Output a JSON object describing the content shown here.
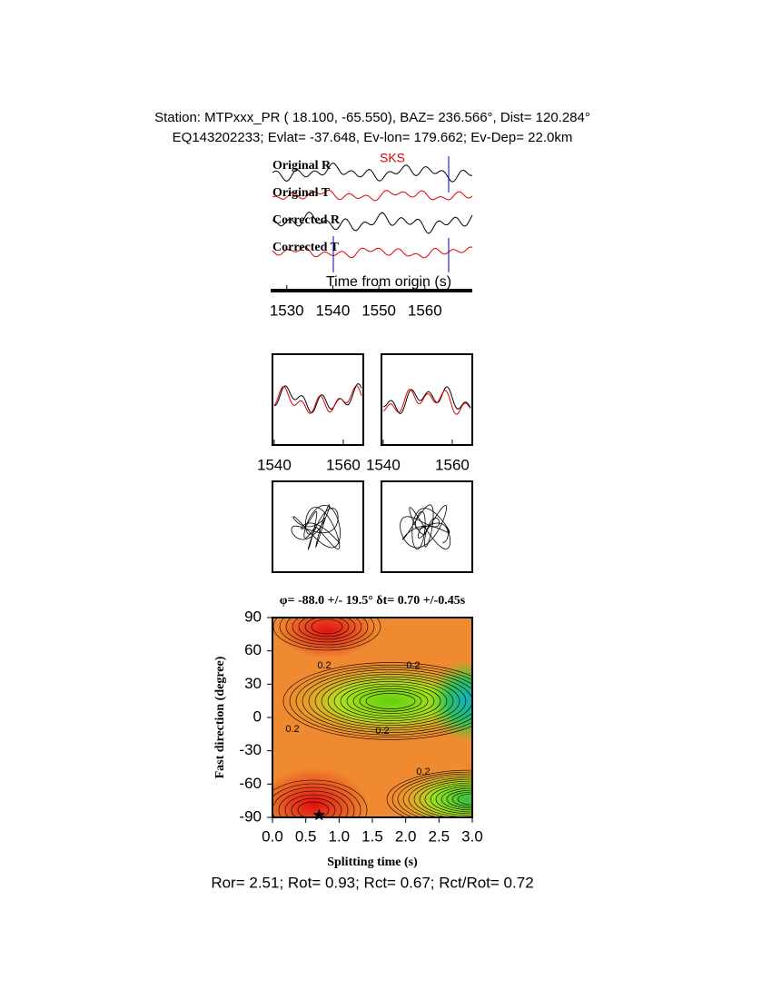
{
  "header": {
    "line1": "Station: MTPxxx_PR (  18.100,  -65.550), BAZ=  236.566°, Dist=  120.284°",
    "line2": "EQ143202233; Evlat= -37.648, Ev-lon= 179.662; Ev-Dep= 22.0km"
  },
  "traces": {
    "labels": [
      "Original R",
      "Original T",
      "Corrected R",
      "Corrected T"
    ],
    "phase": "SKS",
    "xlabel": "Time from origin (s)",
    "xlim": [
      1526.5,
      1570.3
    ],
    "xticks": [
      1530,
      1540,
      1550,
      1560
    ]
  },
  "waveform_panels": {
    "xlim": [
      1539.5,
      1565.8
    ],
    "xticks": [
      1540,
      1560
    ]
  },
  "grid_search": {
    "title": "φ= -88.0 +/- 19.5° δt= 0.70 +/-0.45s",
    "xlabel": "Splitting time (s)",
    "ylabel": "Fast direction (degree)",
    "xlim": [
      0,
      3
    ],
    "ylim": [
      -90,
      90
    ],
    "xticks": [
      {
        "value": 0,
        "label": "0.0"
      },
      0.5,
      {
        "value": 1,
        "label": "1.0"
      },
      1.5,
      {
        "value": 2,
        "label": "2.0"
      },
      2.5,
      {
        "value": 3,
        "label": "3.0"
      }
    ],
    "yticks": [
      90,
      60,
      30,
      0,
      -30,
      -60,
      -90
    ],
    "best_fit": {
      "dt": 0.7,
      "phi": -88
    },
    "contour_labels": [
      "0.2",
      "0.2",
      "0.2",
      "0.2",
      "0.2"
    ]
  },
  "footer": "Ror= 2.51; Rot= 0.93; Rct= 0.67; Rct/Rot= 0.72"
}
